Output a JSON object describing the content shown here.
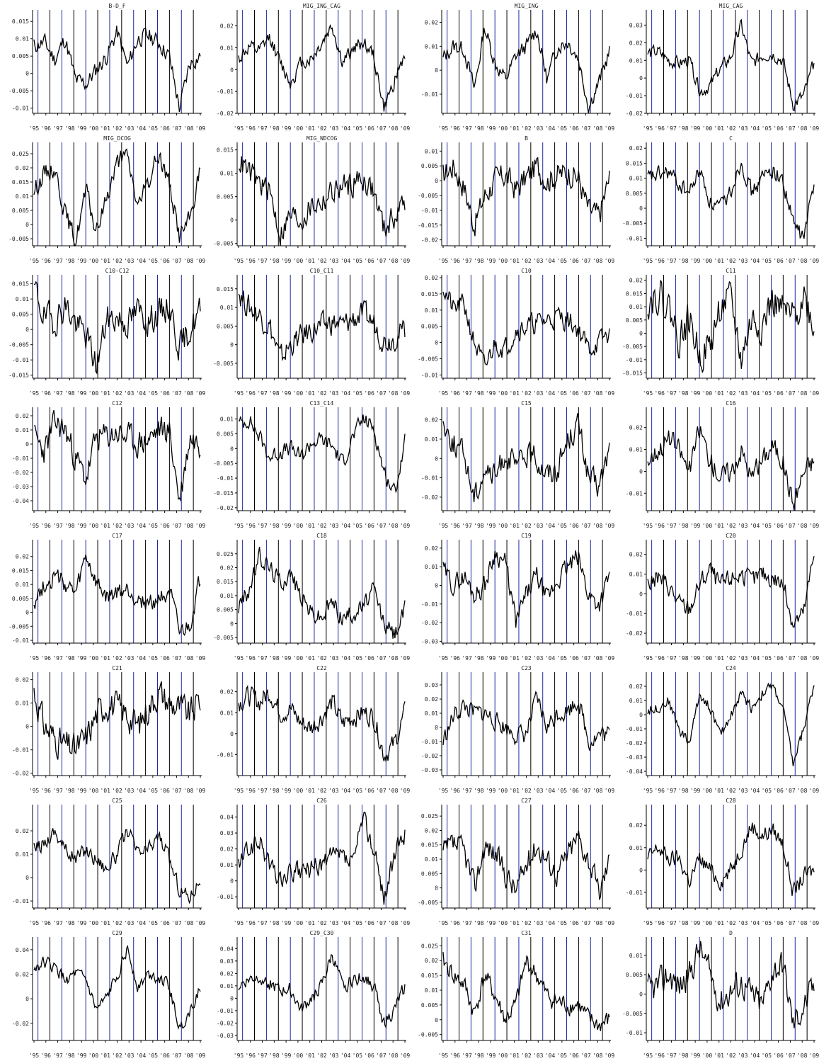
{
  "chart_data": [
    {
      "type": "line",
      "title": "B-D_F",
      "yticks": [
        "0.015",
        "0.01",
        "0.005",
        "0",
        "-0.005",
        "-0.01"
      ],
      "ylim": [
        -0.0115,
        0.0175
      ],
      "seed": 11,
      "shape": [
        0.008,
        0.009,
        0.004,
        0.01,
        -0.002,
        -0.003,
        0.001,
        0.005,
        0.012,
        0.002,
        0.01,
        0.011,
        0.009,
        0.005,
        -0.01,
        0.003,
        0.005
      ],
      "amp": 0.0022
    },
    {
      "type": "line",
      "title": "MIG_ING_CAG",
      "yticks": [
        "0.02",
        "0.01",
        "0",
        "-0.01",
        "-0.02"
      ],
      "ylim": [
        -0.02,
        0.026
      ],
      "seed": 12,
      "shape": [
        0.005,
        0.01,
        0.008,
        0.015,
        0.003,
        -0.006,
        0.003,
        0.005,
        0.012,
        0.02,
        0.003,
        0.009,
        0.013,
        0.006,
        -0.018,
        -0.005,
        0.007
      ],
      "amp": 0.003
    },
    {
      "type": "line",
      "title": "MIG_ING",
      "yticks": [
        "0.02",
        "0.01",
        "0",
        "-0.01"
      ],
      "ylim": [
        -0.018,
        0.024
      ],
      "seed": 13,
      "shape": [
        0.005,
        0.01,
        0.009,
        -0.008,
        0.018,
        0.003,
        -0.004,
        0.006,
        0.01,
        0.017,
        -0.004,
        0.01,
        0.012,
        0.005,
        -0.015,
        -0.005,
        0.008
      ],
      "amp": 0.003
    },
    {
      "type": "line",
      "title": "MIG_CAG",
      "yticks": [
        "0.03",
        "0.02",
        "0.01",
        "0",
        "-0.01",
        "-0.02"
      ],
      "ylim": [
        -0.02,
        0.037
      ],
      "seed": 14,
      "shape": [
        0.014,
        0.015,
        0.01,
        0.008,
        0.01,
        -0.008,
        -0.004,
        0.005,
        0.012,
        0.03,
        0.008,
        0.013,
        0.014,
        0.01,
        -0.015,
        -0.01,
        0.008
      ],
      "amp": 0.0035
    },
    {
      "type": "line",
      "title": "MIG_DCOG",
      "yticks": [
        "0.025",
        "0.02",
        "0.015",
        "0.01",
        "0.005",
        "0",
        "-0.005"
      ],
      "ylim": [
        -0.0075,
        0.028
      ],
      "seed": 15,
      "shape": [
        0.012,
        0.018,
        0.02,
        0.004,
        -0.006,
        0.012,
        -0.003,
        0.01,
        0.022,
        0.024,
        0.006,
        0.015,
        0.025,
        0.015,
        -0.004,
        0.002,
        0.02
      ],
      "amp": 0.003
    },
    {
      "type": "line",
      "title": "MIG_NDCOG",
      "yticks": [
        "0.015",
        "0.01",
        "0.005",
        "0",
        "-0.005"
      ],
      "ylim": [
        -0.0055,
        0.016
      ],
      "seed": 16,
      "shape": [
        0.013,
        0.01,
        0.008,
        0.006,
        -0.003,
        0.001,
        0.0,
        0.003,
        0.004,
        0.006,
        0.007,
        0.008,
        0.009,
        0.006,
        -0.002,
        0.001,
        0.004
      ],
      "amp": 0.0025
    },
    {
      "type": "line",
      "title": "B",
      "yticks": [
        "0.01",
        "0.005",
        "0",
        "-0.005",
        "-0.01",
        "-0.015",
        "-0.02"
      ],
      "ylim": [
        -0.022,
        0.012
      ],
      "seed": 17,
      "shape": [
        0.002,
        0.005,
        -0.002,
        -0.015,
        -0.005,
        0.0,
        0.002,
        -0.003,
        0.001,
        0.005,
        0.0,
        0.002,
        0.003,
        0.001,
        -0.01,
        -0.012,
        0.001
      ],
      "amp": 0.004
    },
    {
      "type": "line",
      "title": "C",
      "yticks": [
        "0.02",
        "0.015",
        "0.01",
        "0.005",
        "0",
        "-0.005",
        "-0.01"
      ],
      "ylim": [
        -0.0125,
        0.021
      ],
      "seed": 18,
      "shape": [
        0.01,
        0.011,
        0.012,
        0.008,
        0.005,
        0.013,
        0.002,
        0.0,
        0.006,
        0.016,
        0.005,
        0.01,
        0.013,
        0.009,
        -0.005,
        -0.01,
        0.008
      ],
      "amp": 0.0025
    },
    {
      "type": "line",
      "title": "C10-C12",
      "yticks": [
        "0.015",
        "0.01",
        "0.005",
        "0",
        "-0.005",
        "-0.01",
        "-0.015"
      ],
      "ylim": [
        -0.016,
        0.017
      ],
      "seed": 19,
      "shape": [
        0.014,
        0.004,
        0.003,
        0.008,
        0.002,
        -0.002,
        -0.012,
        0.003,
        0.004,
        0.002,
        0.006,
        0.003,
        0.005,
        0.008,
        -0.006,
        0.0,
        0.006
      ],
      "amp": 0.0045
    },
    {
      "type": "line",
      "title": "C10_C11",
      "yticks": [
        "0.015",
        "0.01",
        "0.005",
        "0",
        "-0.005"
      ],
      "ylim": [
        -0.009,
        0.018
      ],
      "seed": 20,
      "shape": [
        0.014,
        0.01,
        0.008,
        0.005,
        -0.004,
        0.0,
        0.002,
        0.004,
        0.005,
        0.006,
        0.005,
        0.007,
        0.008,
        0.006,
        0.001,
        0.002,
        0.004
      ],
      "amp": 0.003
    },
    {
      "type": "line",
      "title": "C10",
      "yticks": [
        "0.02",
        "0.015",
        "0.01",
        "0.005",
        "0",
        "-0.005",
        "-0.01"
      ],
      "ylim": [
        -0.011,
        0.02
      ],
      "seed": 21,
      "shape": [
        0.017,
        0.01,
        0.012,
        0.0,
        -0.008,
        0.0,
        -0.002,
        0.004,
        0.005,
        0.006,
        0.007,
        0.008,
        0.007,
        0.004,
        -0.002,
        0.0,
        0.003
      ],
      "amp": 0.003
    },
    {
      "type": "line",
      "title": "C11",
      "yticks": [
        "0.02",
        "0.015",
        "0.01",
        "0.005",
        "0",
        "-0.005",
        "-0.01",
        "-0.015"
      ],
      "ylim": [
        -0.017,
        0.021
      ],
      "seed": 22,
      "shape": [
        0.012,
        0.015,
        0.01,
        -0.002,
        0.005,
        -0.008,
        -0.005,
        0.01,
        0.012,
        -0.01,
        0.005,
        0.003,
        0.012,
        0.008,
        0.005,
        0.015,
        0.002
      ],
      "amp": 0.006
    },
    {
      "type": "line",
      "title": "C12",
      "yticks": [
        "0.02",
        "0.01",
        "0",
        "-0.01",
        "-0.02",
        "-0.03",
        "-0.04"
      ],
      "ylim": [
        -0.047,
        0.024
      ],
      "seed": 23,
      "shape": [
        0.005,
        -0.005,
        0.015,
        0.01,
        -0.01,
        -0.025,
        0.005,
        0.005,
        0.008,
        0.005,
        0.0,
        0.003,
        0.01,
        0.01,
        -0.04,
        0.005,
        0.0
      ],
      "amp": 0.009
    },
    {
      "type": "line",
      "title": "C13_C14",
      "yticks": [
        "0.01",
        "0.005",
        "0",
        "-0.005",
        "-0.01",
        "-0.015",
        "-0.02"
      ],
      "ylim": [
        -0.021,
        0.013
      ],
      "seed": 24,
      "shape": [
        0.008,
        0.01,
        0.004,
        -0.003,
        -0.001,
        0.0,
        -0.003,
        0.002,
        0.003,
        0.001,
        -0.005,
        0.004,
        0.01,
        0.007,
        -0.008,
        -0.015,
        0.002
      ],
      "amp": 0.0025
    },
    {
      "type": "line",
      "title": "C15",
      "yticks": [
        "0.02",
        "0.01",
        "0",
        "-0.01",
        "-0.02"
      ],
      "ylim": [
        -0.027,
        0.025
      ],
      "seed": 25,
      "shape": [
        0.018,
        0.008,
        0.002,
        -0.02,
        -0.005,
        -0.01,
        0.003,
        -0.005,
        0.002,
        0.0,
        -0.008,
        -0.005,
        0.01,
        0.018,
        -0.01,
        -0.015,
        0.005
      ],
      "amp": 0.006
    },
    {
      "type": "line",
      "title": "C16",
      "yticks": [
        "0.02",
        "0.01",
        "0",
        "-0.01"
      ],
      "ylim": [
        -0.018,
        0.028
      ],
      "seed": 26,
      "shape": [
        0.005,
        0.01,
        0.015,
        0.01,
        0.0,
        0.02,
        0.005,
        -0.002,
        0.0,
        0.01,
        -0.003,
        0.005,
        0.012,
        0.005,
        -0.015,
        0.0,
        0.005
      ],
      "amp": 0.0045
    },
    {
      "type": "line",
      "title": "C17",
      "yticks": [
        "0.02",
        "0.015",
        "0.01",
        "0.005",
        "0",
        "-0.005",
        "-0.01"
      ],
      "ylim": [
        -0.011,
        0.025
      ],
      "seed": 27,
      "shape": [
        0.004,
        0.01,
        0.013,
        0.01,
        0.006,
        0.02,
        0.01,
        0.005,
        0.007,
        0.008,
        0.005,
        0.003,
        0.005,
        0.008,
        -0.008,
        -0.005,
        0.012
      ],
      "amp": 0.003
    },
    {
      "type": "line",
      "title": "C18",
      "yticks": [
        "0.025",
        "0.02",
        "0.015",
        "0.01",
        "0.005",
        "0",
        "-0.005"
      ],
      "ylim": [
        -0.007,
        0.029
      ],
      "seed": 28,
      "shape": [
        0.006,
        0.012,
        0.024,
        0.02,
        0.015,
        0.018,
        0.01,
        0.004,
        0.002,
        0.008,
        0.002,
        0.004,
        0.006,
        0.012,
        0.0,
        -0.004,
        0.005
      ],
      "amp": 0.003
    },
    {
      "type": "line",
      "title": "C19",
      "yticks": [
        "0.02",
        "0.01",
        "0",
        "-0.01",
        "-0.02",
        "-0.03"
      ],
      "ylim": [
        -0.031,
        0.023
      ],
      "seed": 29,
      "shape": [
        0.008,
        0.0,
        0.005,
        -0.005,
        0.0,
        0.018,
        0.012,
        -0.02,
        -0.005,
        0.005,
        -0.008,
        0.003,
        0.01,
        0.015,
        -0.005,
        -0.01,
        0.005
      ],
      "amp": 0.005
    },
    {
      "type": "line",
      "title": "C20",
      "yticks": [
        "0.02",
        "0.01",
        "0",
        "-0.01",
        "-0.02"
      ],
      "ylim": [
        -0.025,
        0.026
      ],
      "seed": 30,
      "shape": [
        0.005,
        0.008,
        0.004,
        -0.005,
        -0.008,
        0.005,
        0.012,
        0.004,
        0.008,
        0.01,
        0.006,
        0.01,
        0.008,
        0.005,
        -0.015,
        -0.01,
        0.02
      ],
      "amp": 0.0045
    },
    {
      "type": "line",
      "title": "C21",
      "yticks": [
        "0.02",
        "0.01",
        "0",
        "-0.01",
        "-0.02"
      ],
      "ylim": [
        -0.021,
        0.022
      ],
      "seed": 31,
      "shape": [
        0.015,
        0.0,
        -0.005,
        -0.008,
        -0.01,
        -0.005,
        0.005,
        0.01,
        0.008,
        0.005,
        0.0,
        0.008,
        0.015,
        0.01,
        0.008,
        0.005,
        0.012
      ],
      "amp": 0.006
    },
    {
      "type": "line",
      "title": "C22",
      "yticks": [
        "0.02",
        "0.01",
        "0",
        "-0.01"
      ],
      "ylim": [
        -0.02,
        0.028
      ],
      "seed": 32,
      "shape": [
        0.015,
        0.018,
        0.015,
        0.02,
        0.01,
        0.012,
        0.005,
        0.003,
        0.008,
        0.015,
        0.005,
        0.008,
        0.01,
        0.008,
        -0.01,
        -0.005,
        0.01
      ],
      "amp": 0.0045
    },
    {
      "type": "line",
      "title": "C23",
      "yticks": [
        "0.03",
        "0.02",
        "0.01",
        "0",
        "-0.01",
        "-0.02",
        "-0.03"
      ],
      "ylim": [
        -0.034,
        0.037
      ],
      "seed": 33,
      "shape": [
        -0.01,
        0.008,
        0.015,
        0.01,
        0.01,
        0.005,
        0.0,
        -0.005,
        -0.005,
        0.02,
        0.0,
        0.01,
        0.012,
        0.02,
        -0.01,
        -0.005,
        -0.005
      ],
      "amp": 0.006
    },
    {
      "type": "line",
      "title": "C24",
      "yticks": [
        "0.02",
        "0.01",
        "0",
        "-0.01",
        "-0.02",
        "-0.03",
        "-0.04"
      ],
      "ylim": [
        -0.043,
        0.028
      ],
      "seed": 34,
      "shape": [
        0.003,
        0.005,
        0.01,
        -0.01,
        -0.02,
        0.015,
        0.005,
        -0.015,
        0.0,
        0.015,
        0.005,
        0.015,
        0.02,
        0.005,
        -0.035,
        -0.01,
        0.022
      ],
      "amp": 0.0035
    },
    {
      "type": "line",
      "title": "C25",
      "yticks": [
        "0.02",
        "0.01",
        "0",
        "-0.01"
      ],
      "ylim": [
        -0.013,
        0.03
      ],
      "seed": 35,
      "shape": [
        0.012,
        0.015,
        0.02,
        0.012,
        0.008,
        0.012,
        0.008,
        0.004,
        0.01,
        0.02,
        0.01,
        0.012,
        0.018,
        0.008,
        -0.005,
        -0.008,
        0.0
      ],
      "amp": 0.003
    },
    {
      "type": "line",
      "title": "C26",
      "yticks": [
        "0.04",
        "0.03",
        "0.02",
        "0.01",
        "0",
        "-0.01"
      ],
      "ylim": [
        -0.017,
        0.046
      ],
      "seed": 36,
      "shape": [
        0.01,
        0.02,
        0.025,
        0.01,
        0.0,
        0.005,
        0.005,
        0.008,
        0.01,
        0.015,
        0.015,
        0.01,
        0.04,
        0.02,
        -0.01,
        0.015,
        0.03
      ],
      "amp": 0.006
    },
    {
      "type": "line",
      "title": "C27",
      "yticks": [
        "0.025",
        "0.02",
        "0.015",
        "0.01",
        "0.005",
        "0",
        "-0.005"
      ],
      "ylim": [
        -0.007,
        0.028
      ],
      "seed": 37,
      "shape": [
        0.012,
        0.015,
        0.013,
        0.0,
        0.015,
        0.012,
        0.005,
        -0.001,
        0.008,
        0.015,
        0.01,
        0.005,
        0.012,
        0.018,
        0.01,
        -0.002,
        0.01
      ],
      "amp": 0.004
    },
    {
      "type": "line",
      "title": "C28",
      "yticks": [
        "0.02",
        "0.01",
        "0",
        "-0.01"
      ],
      "ylim": [
        -0.017,
        0.028
      ],
      "seed": 38,
      "shape": [
        0.005,
        0.01,
        0.005,
        0.005,
        -0.005,
        0.005,
        0.0,
        -0.005,
        0.0,
        0.01,
        0.02,
        0.015,
        0.018,
        0.012,
        -0.01,
        -0.003,
        0.0
      ],
      "amp": 0.0035
    },
    {
      "type": "line",
      "title": "C29",
      "yticks": [
        "0.04",
        "0.02",
        "0",
        "-0.02"
      ],
      "ylim": [
        -0.034,
        0.048
      ],
      "seed": 39,
      "shape": [
        0.025,
        0.03,
        0.025,
        0.015,
        0.02,
        0.015,
        -0.01,
        0.0,
        0.02,
        0.04,
        0.01,
        0.02,
        0.018,
        0.01,
        -0.025,
        -0.01,
        0.01
      ],
      "amp": 0.0045
    },
    {
      "type": "line",
      "title": "C29_C30",
      "yticks": [
        "0.04",
        "0.03",
        "0.02",
        "0.01",
        "0",
        "-0.01",
        "-0.02",
        "-0.03"
      ],
      "ylim": [
        -0.034,
        0.047
      ],
      "seed": 40,
      "shape": [
        0.01,
        0.015,
        0.018,
        0.012,
        0.005,
        0.008,
        -0.01,
        0.0,
        0.01,
        0.035,
        0.008,
        0.015,
        0.018,
        0.01,
        -0.02,
        -0.01,
        0.01
      ],
      "amp": 0.005
    },
    {
      "type": "line",
      "title": "C31",
      "yticks": [
        "0.025",
        "0.02",
        "0.015",
        "0.01",
        "0.005",
        "0",
        "-0.005"
      ],
      "ylim": [
        -0.007,
        0.027
      ],
      "seed": 41,
      "shape": [
        0.02,
        0.015,
        0.012,
        0.002,
        0.015,
        0.008,
        0.0,
        0.005,
        0.02,
        0.015,
        0.008,
        0.006,
        0.005,
        0.005,
        0.0,
        -0.002,
        0.0
      ],
      "amp": 0.003
    },
    {
      "type": "line",
      "title": "D",
      "yticks": [
        "0.01",
        "0.005",
        "0",
        "-0.005",
        "-0.01"
      ],
      "ylim": [
        -0.012,
        0.014
      ],
      "seed": 42,
      "shape": [
        0.001,
        0.002,
        0.005,
        0.002,
        0.005,
        0.012,
        0.005,
        -0.002,
        0.001,
        0.003,
        0.0,
        -0.003,
        0.006,
        0.008,
        -0.008,
        -0.003,
        0.002
      ],
      "amp": 0.0035
    }
  ],
  "xticks": [
    "'95",
    "'96",
    "'97",
    "'98",
    "'99",
    "'00",
    "'01",
    "'02",
    "'03",
    "'04",
    "'05",
    "'06",
    "'07",
    "'08",
    "'09"
  ],
  "colors": {
    "vline_odd": "#1f2aa0",
    "vline_even": "#000000",
    "series": "#000000",
    "axis": "#000000"
  }
}
